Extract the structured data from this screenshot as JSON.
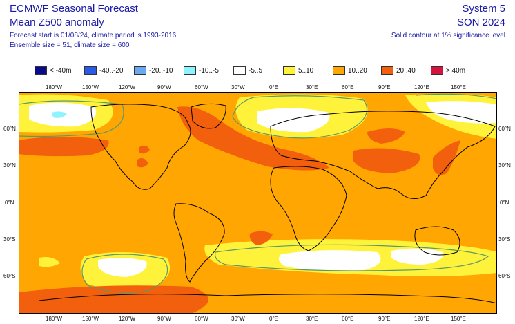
{
  "header": {
    "title": "ECMWF Seasonal Forecast",
    "subtitle": "Mean Z500 anomaly",
    "meta_line_1": "Forecast start is 01/08/24, climate period is 1993-2016",
    "meta_line_2": "Ensemble size = 51, climate size = 600",
    "system": "System 5",
    "season": "SON 2024",
    "significance_note": "Solid contour at 1% significance level"
  },
  "legend": [
    {
      "label": "< -40m",
      "color": "#0a0a8c"
    },
    {
      "label": "-40..-20",
      "color": "#2a5ae8"
    },
    {
      "label": "-20..-10",
      "color": "#6aa8f0"
    },
    {
      "label": "-10..-5",
      "color": "#8ef2ff"
    },
    {
      "label": "-5..5",
      "color": "#ffffff"
    },
    {
      "label": "5..10",
      "color": "#fff23a"
    },
    {
      "label": "10..20",
      "color": "#ffa602"
    },
    {
      "label": "20..40",
      "color": "#f25f0d"
    },
    {
      "label": "> 40m",
      "color": "#d4143c"
    }
  ],
  "axes": {
    "lon_labels": [
      "180°W",
      "150°W",
      "120°W",
      "90°W",
      "60°W",
      "30°W",
      "0°E",
      "30°E",
      "60°E",
      "90°E",
      "120°E",
      "150°E"
    ],
    "lat_labels": [
      "60°N",
      "30°N",
      "0°N",
      "30°S",
      "60°S"
    ]
  },
  "colors": {
    "land_outline": "#000000",
    "significance_contour": "#5a9a6a"
  }
}
